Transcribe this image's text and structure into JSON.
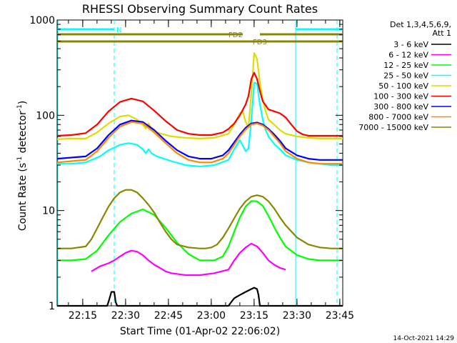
{
  "chart_data": {
    "type": "line",
    "title": "RHESSI Observing Summary Count Rates",
    "xlabel": "Start Time (01-Apr-02 22:06:02)",
    "ylabel": "Count Rate (s",
    "ylabel_sup": "-1",
    "ylabel_tail": " detector",
    "ylabel_tail_sup": "-1",
    "ylabel_close": ")",
    "y_scale": "log",
    "ylim": [
      1,
      1000
    ],
    "y_ticks": [
      {
        "value": 1,
        "label": "1"
      },
      {
        "value": 10,
        "label": "10"
      },
      {
        "value": 100,
        "label": "100"
      },
      {
        "value": 1000,
        "label": "1000"
      }
    ],
    "xlim_minutes_after_start": [
      0,
      100
    ],
    "x_ticks": [
      {
        "minute": 8.97,
        "label": "22:15"
      },
      {
        "minute": 23.97,
        "label": "22:30"
      },
      {
        "minute": 38.97,
        "label": "22:45"
      },
      {
        "minute": 53.97,
        "label": "23:00"
      },
      {
        "minute": 68.97,
        "label": "23:15"
      },
      {
        "minute": 83.97,
        "label": "23:30"
      },
      {
        "minute": 98.97,
        "label": "23:45"
      }
    ],
    "legend_header": [
      "Det 1,3,4,5,6,9,",
      "Att 1"
    ],
    "legend_placement": "right",
    "series": [
      {
        "name": "3 - 6 keV",
        "color": "#000000",
        "x": [
          0,
          17.5,
          18,
          19,
          20,
          20.5,
          21,
          60,
          61,
          62,
          63,
          64,
          65,
          66,
          67,
          68,
          69,
          70,
          70.5,
          71,
          100
        ],
        "y": [
          1,
          1,
          1.1,
          1.4,
          1.4,
          1.1,
          1,
          1,
          1.1,
          1.2,
          1.25,
          1.3,
          1.35,
          1.4,
          1.45,
          1.5,
          1.55,
          1.5,
          1.3,
          1,
          1
        ]
      },
      {
        "name": "6 - 12 keV",
        "color": "#ff00ff",
        "x": [
          12,
          13,
          15,
          18,
          20,
          22,
          24,
          26,
          28,
          30,
          32,
          34,
          36,
          38,
          40,
          45,
          50,
          55,
          60,
          62,
          64,
          66,
          68,
          70,
          72,
          74,
          76,
          78,
          80
        ],
        "y": [
          2.3,
          2.4,
          2.6,
          2.8,
          3.0,
          3.3,
          3.6,
          3.8,
          3.7,
          3.4,
          3.0,
          2.7,
          2.5,
          2.3,
          2.2,
          2.1,
          2.1,
          2.2,
          2.4,
          3.0,
          3.6,
          4.1,
          4.5,
          4.2,
          3.6,
          3.0,
          2.7,
          2.5,
          2.4
        ]
      },
      {
        "name": "12 - 25 keV",
        "color": "#00ff00",
        "x": [
          0,
          5,
          10,
          14,
          18,
          22,
          26,
          30,
          34,
          38,
          42,
          46,
          50,
          52,
          55,
          58,
          60,
          62,
          64,
          66,
          68,
          70,
          72,
          74,
          76,
          78,
          80,
          84,
          88,
          92,
          96,
          100
        ],
        "y": [
          3.0,
          3.0,
          3.1,
          3.8,
          5.5,
          7.6,
          9.3,
          10.3,
          9.0,
          6.6,
          4.6,
          3.5,
          3.0,
          3.0,
          3.0,
          3.3,
          4.2,
          6.0,
          8.5,
          11.0,
          12.6,
          12.5,
          11.2,
          8.8,
          6.7,
          5.2,
          4.2,
          3.4,
          3.1,
          3.0,
          3.0,
          3.0
        ]
      },
      {
        "name": "25 - 50 keV",
        "color": "#00ffff",
        "x": [
          0,
          5,
          10,
          15,
          18,
          22,
          25,
          28,
          30,
          31,
          32,
          33,
          35,
          40,
          45,
          50,
          55,
          60,
          62,
          64,
          65,
          66,
          67,
          68,
          69,
          70,
          71,
          72,
          73,
          74,
          76,
          78,
          80,
          84,
          88,
          92,
          96,
          100
        ],
        "y": [
          31,
          31,
          32,
          37,
          43,
          49,
          51,
          49,
          44,
          40,
          44,
          40,
          37,
          33,
          30,
          29,
          30,
          34,
          44,
          55,
          48,
          42,
          45,
          90,
          220,
          215,
          130,
          90,
          70,
          60,
          50,
          44,
          38,
          34,
          32,
          31,
          30,
          30
        ]
      },
      {
        "name": "50 - 100 keV",
        "color": "#dddd00",
        "x": [
          0,
          5,
          10,
          14,
          18,
          22,
          25,
          28,
          30,
          31,
          32,
          33,
          35,
          40,
          45,
          50,
          55,
          60,
          62,
          64,
          65,
          66,
          67,
          68,
          69,
          70,
          71,
          72,
          73,
          74,
          76,
          78,
          80,
          84,
          88,
          92,
          96,
          100
        ],
        "y": [
          56,
          57,
          57,
          66,
          82,
          97,
          100,
          90,
          80,
          73,
          82,
          73,
          66,
          60,
          58,
          57,
          58,
          64,
          80,
          105,
          110,
          85,
          75,
          170,
          450,
          390,
          220,
          145,
          110,
          90,
          80,
          70,
          64,
          60,
          58,
          57,
          57,
          57
        ]
      },
      {
        "name": "100 - 300 keV",
        "color": "#ff0000",
        "x": [
          0,
          5,
          10,
          14,
          18,
          22,
          26,
          30,
          34,
          38,
          42,
          46,
          50,
          54,
          58,
          60,
          62,
          64,
          66,
          67,
          68,
          69,
          70,
          71,
          72,
          74,
          76,
          78,
          80,
          82,
          84,
          86,
          88,
          92,
          96,
          100
        ],
        "y": [
          61,
          62,
          65,
          80,
          110,
          138,
          150,
          140,
          112,
          87,
          70,
          64,
          62,
          62,
          66,
          72,
          82,
          100,
          130,
          160,
          240,
          280,
          240,
          180,
          140,
          115,
          110,
          105,
          95,
          80,
          68,
          63,
          61,
          61,
          61,
          61
        ]
      },
      {
        "name": "300 - 800 keV",
        "color": "#0000ff",
        "x": [
          0,
          5,
          10,
          14,
          18,
          22,
          26,
          30,
          34,
          38,
          42,
          46,
          50,
          54,
          58,
          60,
          62,
          64,
          66,
          68,
          70,
          72,
          74,
          76,
          78,
          80,
          84,
          88,
          92,
          96,
          100
        ],
        "y": [
          35,
          36,
          37,
          45,
          62,
          80,
          88,
          85,
          70,
          54,
          43,
          37,
          35,
          35,
          38,
          43,
          52,
          63,
          74,
          82,
          84,
          80,
          72,
          63,
          54,
          45,
          38,
          35,
          34,
          34,
          34
        ]
      },
      {
        "name": "800 - 7000 keV",
        "color": "#ff8800",
        "x": [
          0,
          5,
          10,
          14,
          18,
          22,
          26,
          30,
          34,
          38,
          42,
          46,
          50,
          54,
          58,
          60,
          62,
          64,
          66,
          68,
          70,
          72,
          74,
          76,
          78,
          80,
          84,
          88,
          92,
          96,
          100
        ],
        "y": [
          32,
          33,
          34,
          42,
          58,
          76,
          85,
          82,
          66,
          51,
          40,
          34,
          32,
          32,
          35,
          40,
          49,
          60,
          71,
          80,
          82,
          78,
          70,
          60,
          51,
          42,
          35,
          32,
          31,
          31,
          31
        ]
      },
      {
        "name": "7000 - 15000 keV",
        "color": "#888800",
        "x": [
          0,
          5,
          10,
          12,
          14,
          16,
          18,
          20,
          22,
          24,
          26,
          28,
          30,
          32,
          34,
          36,
          38,
          40,
          42,
          46,
          50,
          52,
          54,
          56,
          58,
          60,
          62,
          64,
          66,
          68,
          70,
          72,
          74,
          76,
          78,
          80,
          84,
          88,
          92,
          96,
          100
        ],
        "y": [
          4.0,
          4.0,
          4.2,
          5.0,
          6.5,
          8.5,
          11.0,
          13.5,
          15.5,
          16.5,
          16.5,
          15.5,
          13.5,
          11.5,
          9.5,
          7.5,
          6.0,
          5.0,
          4.4,
          4.1,
          4.0,
          4.0,
          4.1,
          4.4,
          5.2,
          6.5,
          8.3,
          10.5,
          12.5,
          14.0,
          14.5,
          14.0,
          12.5,
          10.5,
          8.5,
          7.0,
          5.2,
          4.4,
          4.1,
          4.0,
          4.0
        ]
      }
    ],
    "attenuator_flags": [
      {
        "label": "N",
        "color": "#00ffff",
        "segments": [
          [
            0,
            20
          ],
          [
            83.5,
            100
          ]
        ]
      },
      {
        "label": "FD2",
        "color": "#888800",
        "segments": [
          [
            0,
            65
          ],
          [
            71,
            100
          ]
        ]
      },
      {
        "label": "FD3",
        "color": "#888800",
        "segments": [
          [
            0,
            100
          ]
        ]
      }
    ],
    "vertical_markers": [
      {
        "minute": 20,
        "color": "#00ffff",
        "style": "dashed"
      },
      {
        "minute": 83.5,
        "color": "#00ffff",
        "style": "solid"
      },
      {
        "minute": 98,
        "color": "#00ffff",
        "style": "dashed"
      }
    ],
    "footer_date": "14-Oct-2021 14:29"
  }
}
